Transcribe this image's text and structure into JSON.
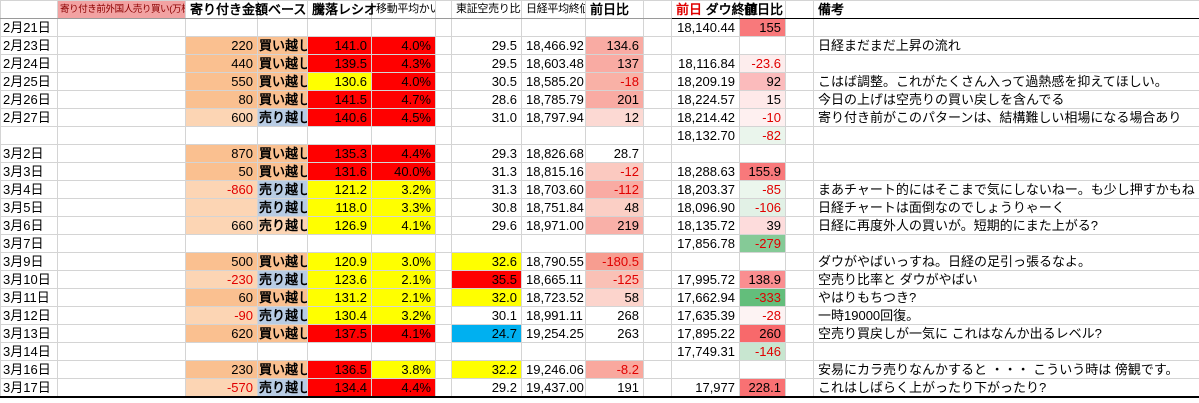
{
  "header": {
    "col_foreign": "寄り付き前外国人売り買い(万株)",
    "col_amount_base": "寄り付き金額ベース",
    "col_toraku": "騰落レシオ",
    "col_kairi": "移動平均かい離",
    "col_karauri": "東証空売り比率",
    "col_nikkei": "日経平均終値",
    "col_nikkei_chg": "前日比",
    "col_dow_prefix": "前日",
    "col_dow": "ダウ終値",
    "col_dow_chg": "前日比",
    "col_remark": "備考"
  },
  "rows": [
    {
      "date": "2月21日",
      "foreign": "",
      "foreign_bg": "",
      "amount": "",
      "amount_bg": "",
      "toraku": "",
      "toraku_bg": "",
      "kairi": "",
      "kairi_bg": "",
      "karauri": "",
      "karauri_bg": "",
      "nikkei": "",
      "chg": "",
      "chg_bg": "",
      "dow": "18,140.44",
      "dow_chg": "155",
      "dow_chg_bg": "#F8797B",
      "remark": ""
    },
    {
      "date": "2月23日",
      "foreign": "220",
      "foreign_bg": "#FAC090",
      "amount": "買い越し",
      "amount_bg": "#FAC090",
      "toraku": "141.0",
      "toraku_bg": "#FF0000",
      "kairi": "4.0%",
      "kairi_bg": "#FF0000",
      "karauri": "29.5",
      "karauri_bg": "",
      "nikkei": "18,466.92",
      "chg": "134.6",
      "chg_bg": "#F9ABA3",
      "dow": "",
      "dow_chg": "",
      "dow_chg_bg": "",
      "remark": "日経まだまだ上昇の流れ"
    },
    {
      "date": "2月24日",
      "foreign": "440",
      "foreign_bg": "#FAC090",
      "amount": "買い越し",
      "amount_bg": "#FAC090",
      "toraku": "139.5",
      "toraku_bg": "#FF0000",
      "kairi": "4.3%",
      "kairi_bg": "#FF0000",
      "karauri": "29.5",
      "karauri_bg": "",
      "nikkei": "18,603.48",
      "chg": "137",
      "chg_bg": "#F9ABA3",
      "dow": "18,116.84",
      "dow_chg": "-23.6",
      "dow_chg_bg": "#FDEDED",
      "remark": ""
    },
    {
      "date": "2月25日",
      "foreign": "550",
      "foreign_bg": "#FAC090",
      "amount": "買い越し",
      "amount_bg": "#FAC090",
      "toraku": "130.6",
      "toraku_bg": "#FFFF00",
      "kairi": "4.0%",
      "kairi_bg": "#FF0000",
      "karauri": "30.5",
      "karauri_bg": "",
      "nikkei": "18,585.20",
      "chg": "-18",
      "chg_bg": "#F9B1A6",
      "dow": "18,209.19",
      "dow_chg": "92",
      "dow_chg_bg": "#FBBBBC",
      "remark": "こはば調整。これがたくさん入って過熱感を抑えてほしい。"
    },
    {
      "date": "2月26日",
      "foreign": "80",
      "foreign_bg": "#FAC090",
      "amount": "買い越し",
      "amount_bg": "#FAC090",
      "toraku": "141.5",
      "toraku_bg": "#FF0000",
      "kairi": "4.7%",
      "kairi_bg": "#FF0000",
      "karauri": "28.6",
      "karauri_bg": "",
      "nikkei": "18,785.79",
      "chg": "201",
      "chg_bg": "#F9ABA3",
      "dow": "18,224.57",
      "dow_chg": "15",
      "dow_chg_bg": "#FEE9E9",
      "remark": "今日の上げは空売りの買い戻しを含んでる"
    },
    {
      "date": "2月27日",
      "foreign": "600",
      "foreign_bg": "#FCD5B4",
      "amount": "売り越し",
      "amount_bg": "#B8CCE4",
      "toraku": "140.6",
      "toraku_bg": "#FF0000",
      "kairi": "4.5%",
      "kairi_bg": "#FF0000",
      "karauri": "31.0",
      "karauri_bg": "",
      "nikkei": "18,797.94",
      "chg": "12",
      "chg_bg": "#FCD9D3",
      "dow": "18,214.42",
      "dow_chg": "-10",
      "dow_chg_bg": "#FEF0F0",
      "remark": "寄り付き前がこのパターンは、結構難しい相場になる場合あり"
    },
    {
      "date": "",
      "foreign": "",
      "foreign_bg": "",
      "amount": "",
      "amount_bg": "",
      "toraku": "",
      "toraku_bg": "",
      "kairi": "",
      "kairi_bg": "",
      "karauri": "",
      "karauri_bg": "",
      "nikkei": "",
      "chg": "",
      "chg_bg": "",
      "dow": "18,132.70",
      "dow_chg": "-82",
      "dow_chg_bg": "#EAF5EC",
      "remark": ""
    },
    {
      "date": "3月2日",
      "foreign": "870",
      "foreign_bg": "#FAC090",
      "amount": "買い越し",
      "amount_bg": "#FAC090",
      "toraku": "135.3",
      "toraku_bg": "#FF0000",
      "kairi": "4.4%",
      "kairi_bg": "#FF0000",
      "karauri": "29.3",
      "karauri_bg": "",
      "nikkei": "18,826.68",
      "chg": "28.7",
      "chg_bg": "",
      "dow": "",
      "dow_chg": "",
      "dow_chg_bg": "",
      "remark": ""
    },
    {
      "date": "3月3日",
      "foreign": "50",
      "foreign_bg": "#FAC090",
      "amount": "買い越し",
      "amount_bg": "#FAC090",
      "toraku": "131.6",
      "toraku_bg": "#FF0000",
      "kairi": "40.0%",
      "kairi_bg": "#FF0000",
      "karauri": "31.3",
      "karauri_bg": "",
      "nikkei": "18,815.16",
      "chg": "-12",
      "chg_bg": "#FBC9C0",
      "dow": "18,288.63",
      "dow_chg": "155.9",
      "dow_chg_bg": "#F8797B",
      "remark": ""
    },
    {
      "date": "3月4日",
      "foreign": "-860",
      "foreign_bg": "#FCD5B4",
      "amount": "売り越し",
      "amount_bg": "#B8CCE4",
      "toraku": "121.2",
      "toraku_bg": "#FFFF00",
      "kairi": "3.2%",
      "kairi_bg": "#FFFF00",
      "karauri": "31.3",
      "karauri_bg": "",
      "nikkei": "18,703.60",
      "chg": "-112",
      "chg_bg": "#F9ABA3",
      "dow": "18,203.37",
      "dow_chg": "-85",
      "dow_chg_bg": "#EBF6ED",
      "remark": "まあチャート的にはそこまで気にしないねー。も少し押すかもね"
    },
    {
      "date": "3月5日",
      "foreign": "",
      "foreign_bg": "#FCD5B4",
      "amount": "売り越し",
      "amount_bg": "#B8CCE4",
      "toraku": "118.0",
      "toraku_bg": "#FFFF00",
      "kairi": "3.3%",
      "kairi_bg": "#FFFF00",
      "karauri": "30.8",
      "karauri_bg": "",
      "nikkei": "18,751.84",
      "chg": "48",
      "chg_bg": "#FBCFC5",
      "dow": "18,096.90",
      "dow_chg": "-106",
      "dow_chg_bg": "#E2F1E6",
      "remark": "日経チャートは面倒なのでしょうりゃーく"
    },
    {
      "date": "3月6日",
      "foreign": "660",
      "foreign_bg": "#FCD5B4",
      "amount": "売り越し",
      "amount_bg": "#FCD5B4",
      "toraku": "126.9",
      "toraku_bg": "#FFFF00",
      "kairi": "4.1%",
      "kairi_bg": "#FFFF00",
      "karauri": "29.6",
      "karauri_bg": "",
      "nikkei": "18,971.00",
      "chg": "219",
      "chg_bg": "#F9B0A8",
      "dow": "18,135.72",
      "dow_chg": "39",
      "dow_chg_bg": "#FDDCDC",
      "remark": "日経に再度外人の買いが。短期的にまた上がる?"
    },
    {
      "date": "3月7日",
      "foreign": "",
      "foreign_bg": "",
      "amount": "",
      "amount_bg": "",
      "toraku": "",
      "toraku_bg": "",
      "kairi": "",
      "kairi_bg": "",
      "karauri": "",
      "karauri_bg": "",
      "nikkei": "",
      "chg": "",
      "chg_bg": "",
      "dow": "17,856.78",
      "dow_chg": "-279",
      "dow_chg_bg": "#85CA97",
      "remark": ""
    },
    {
      "date": "3月9日",
      "foreign": "500",
      "foreign_bg": "#FAC090",
      "amount": "買い越し",
      "amount_bg": "#FAC090",
      "toraku": "120.9",
      "toraku_bg": "#FFFF00",
      "kairi": "3.0%",
      "kairi_bg": "#FFFF00",
      "karauri": "32.6",
      "karauri_bg": "#FFFF00",
      "nikkei": "18,790.55",
      "chg": "-180.5",
      "chg_bg": "#F79D90",
      "dow": "",
      "dow_chg": "",
      "dow_chg_bg": "",
      "remark": "ダウがやばいっすね。日経の足引っ張るなよ。"
    },
    {
      "date": "3月10日",
      "foreign": "-230",
      "foreign_bg": "#FCD5B4",
      "amount": "売り越し",
      "amount_bg": "#B8CCE4",
      "toraku": "123.6",
      "toraku_bg": "#FFFF00",
      "kairi": "2.1%",
      "kairi_bg": "#FFFF00",
      "karauri": "35.5",
      "karauri_bg": "#FF0000",
      "nikkei": "18,665.11",
      "chg": "-125",
      "chg_bg": "#FAC1B6",
      "dow": "17,995.72",
      "dow_chg": "138.9",
      "dow_chg_bg": "#FA8E90",
      "remark": "空売り比率と ダウがやばい"
    },
    {
      "date": "3月11日",
      "foreign": "60",
      "foreign_bg": "#FAC090",
      "amount": "買い越し",
      "amount_bg": "#FAC090",
      "toraku": "131.2",
      "toraku_bg": "#FFFF00",
      "kairi": "2.1%",
      "kairi_bg": "#FFFF00",
      "karauri": "32.0",
      "karauri_bg": "#FFFF00",
      "nikkei": "18,723.52",
      "chg": "58",
      "chg_bg": "#FCD4CC",
      "dow": "17,662.94",
      "dow_chg": "-333",
      "dow_chg_bg": "#63BE7B",
      "remark": "やはりもちつき?"
    },
    {
      "date": "3月12日",
      "foreign": "-90",
      "foreign_bg": "#FCD5B4",
      "amount": "売り越し",
      "amount_bg": "#B8CCE4",
      "toraku": "130.4",
      "toraku_bg": "#FFFF00",
      "kairi": "3.2%",
      "kairi_bg": "#FFFF00",
      "karauri": "30.1",
      "karauri_bg": "",
      "nikkei": "18,991.11",
      "chg": "268",
      "chg_bg": "",
      "dow": "17,635.39",
      "dow_chg": "-28",
      "dow_chg_bg": "#FDF3F3",
      "remark": "一時19000回復。"
    },
    {
      "date": "3月13日",
      "foreign": "620",
      "foreign_bg": "#FAC090",
      "amount": "買い越し",
      "amount_bg": "#FAC090",
      "toraku": "137.5",
      "toraku_bg": "#FF0000",
      "kairi": "4.1%",
      "kairi_bg": "#FF0000",
      "karauri": "24.7",
      "karauri_bg": "#00B0F0",
      "nikkei": "19,254.25",
      "chg": "263",
      "chg_bg": "",
      "dow": "17,895.22",
      "dow_chg": "260",
      "dow_chg_bg": "#F8696B",
      "remark": "空売り買戻しが一気に これはなんか出るレベル?"
    },
    {
      "date": "3月14日",
      "foreign": "",
      "foreign_bg": "",
      "amount": "",
      "amount_bg": "",
      "toraku": "",
      "toraku_bg": "",
      "kairi": "",
      "kairi_bg": "",
      "karauri": "",
      "karauri_bg": "",
      "nikkei": "",
      "chg": "",
      "chg_bg": "",
      "dow": "17,749.31",
      "dow_chg": "-146",
      "dow_chg_bg": "#C8E6D0",
      "remark": ""
    },
    {
      "date": "3月16日",
      "foreign": "230",
      "foreign_bg": "#FAC090",
      "amount": "買い越し",
      "amount_bg": "#FAC090",
      "toraku": "136.5",
      "toraku_bg": "#FF0000",
      "kairi": "3.8%",
      "kairi_bg": "#FFFF00",
      "karauri": "32.2",
      "karauri_bg": "#FFFF00",
      "nikkei": "19,246.06",
      "chg": "-8.2",
      "chg_bg": "#F9A89E",
      "dow": "",
      "dow_chg": "",
      "dow_chg_bg": "",
      "remark": "安易にカラ売りなんかすると ・・・ こういう時は 傍観です。"
    },
    {
      "date": "3月17日",
      "foreign": "-570",
      "foreign_bg": "#FCD5B4",
      "amount": "売り越し",
      "amount_bg": "#B8CCE4",
      "toraku": "134.4",
      "toraku_bg": "#FF0000",
      "kairi": "4.4%",
      "kairi_bg": "#FF0000",
      "karauri": "29.2",
      "karauri_bg": "",
      "nikkei": "19,437.00",
      "chg": "191",
      "chg_bg": "",
      "dow": "17,977",
      "dow_chg": "228.1",
      "dow_chg_bg": "#F97173",
      "remark": "これはしばらく上がったり下がったり?"
    }
  ]
}
